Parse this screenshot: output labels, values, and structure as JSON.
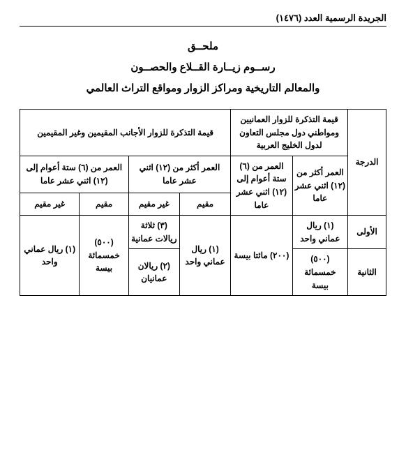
{
  "header": {
    "issue": "الجريدة الرسمية العدد (١٤٧٦)"
  },
  "title": {
    "l1": "ملحــق",
    "l2": "رســوم زيــارة القــلاع والحصــون",
    "l3": "والمعالم التاريخية ومراكز الزوار ومواقع التراث العالمي"
  },
  "th": {
    "grade": "الدرجة",
    "gcc_main": "قيمة التذكرة للزوار العمانيين ومواطني دول مجلس التعاون لدول الخليج العربية",
    "for_main": "قيمة التذكرة للزوار الأجانب المقيمين وغير المقيمين",
    "gcc_adult": "العمر أكثر من (١٢) اثني عشر عاما",
    "gcc_child": "العمر من (٦) ستة أعوام إلى (١٢) اثني عشر عاما",
    "for_adult": "العمر أكثر من (١٢) اثني عشر عاما",
    "for_child": "العمر من (٦) ستة أعوام إلى (١٢) اثني عشر عاما",
    "resident": "مقيم",
    "nonresident": "غير مقيم"
  },
  "rows": {
    "g1": "الأولى",
    "g2": "الثانية",
    "gcc_adult_1": "(١) ريال عماني واحد",
    "gcc_adult_2": "(٥٠٠) خمسمائة بيسة",
    "gcc_child_shared": "(٢٠٠) مائتا بيسة",
    "for_adult_res_shared": "(١) ريال عماني واحد",
    "for_adult_nonres_1": "(٣) ثلاثة ريالات عمانية",
    "for_adult_nonres_2": "(٢) ريالان عمانيان",
    "for_child_res_shared": "(٥٠٠) خمسمائة بيسة",
    "for_child_nonres_shared": "(١) ريال عماني واحد"
  }
}
